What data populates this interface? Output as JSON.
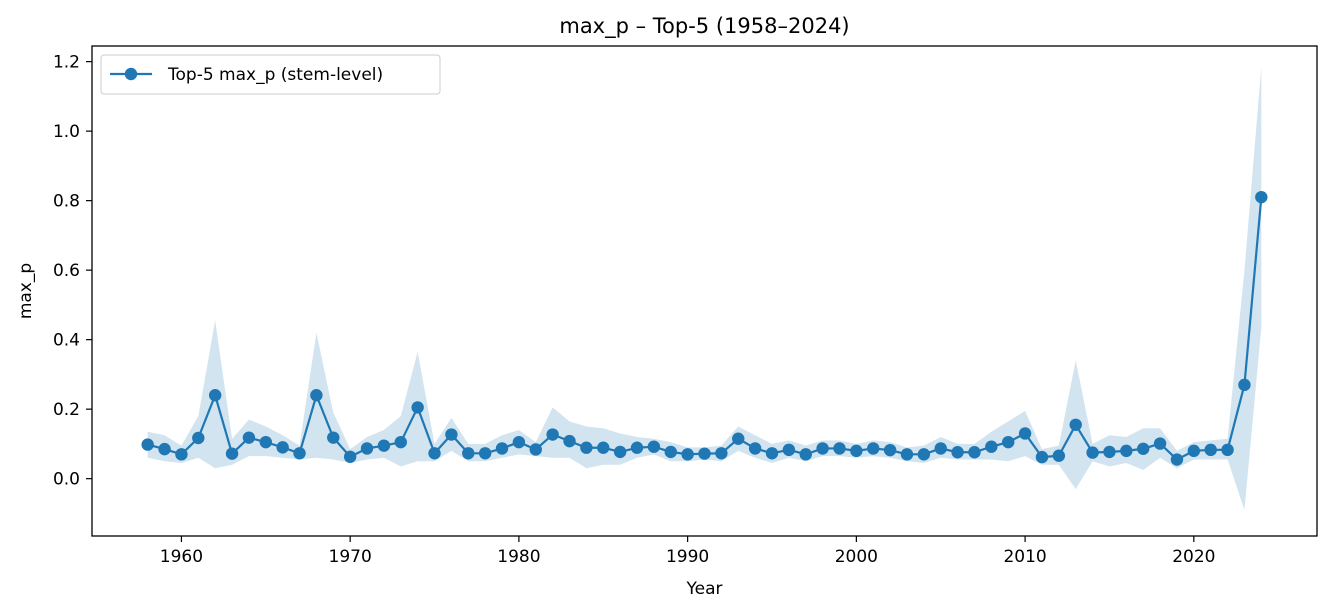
{
  "chart_data": {
    "type": "line",
    "title": "max_p – Top-5 (1958–2024)",
    "xlabel": "Year",
    "ylabel": "max_p",
    "xlim": [
      1954.7,
      2027.3
    ],
    "ylim": [
      -0.165,
      1.245
    ],
    "x_ticks": [
      1960,
      1970,
      1980,
      1990,
      2000,
      2010,
      2020
    ],
    "y_ticks": [
      0.0,
      0.2,
      0.4,
      0.6,
      0.8,
      1.0,
      1.2
    ],
    "y_tick_labels": [
      "0.0",
      "0.2",
      "0.4",
      "0.6",
      "0.8",
      "1.0",
      "1.2"
    ],
    "grid": false,
    "legend_position": "upper left",
    "line_color": "#1f77b4",
    "band_color": "#1f77b4",
    "band_opacity": 0.2,
    "series": [
      {
        "name": "Top-5 max_p (stem-level)",
        "x": [
          1958,
          1959,
          1960,
          1961,
          1962,
          1963,
          1964,
          1965,
          1966,
          1967,
          1968,
          1969,
          1970,
          1971,
          1972,
          1973,
          1974,
          1975,
          1976,
          1977,
          1978,
          1979,
          1980,
          1981,
          1982,
          1983,
          1984,
          1985,
          1986,
          1987,
          1988,
          1989,
          1990,
          1991,
          1992,
          1993,
          1994,
          1995,
          1996,
          1997,
          1998,
          1999,
          2000,
          2001,
          2002,
          2003,
          2004,
          2005,
          2006,
          2007,
          2008,
          2009,
          2010,
          2011,
          2012,
          2013,
          2014,
          2015,
          2016,
          2017,
          2018,
          2019,
          2020,
          2021,
          2022,
          2023,
          2024
        ],
        "values": [
          0.098,
          0.085,
          0.07,
          0.117,
          0.24,
          0.072,
          0.118,
          0.105,
          0.09,
          0.073,
          0.24,
          0.118,
          0.063,
          0.087,
          0.095,
          0.105,
          0.205,
          0.073,
          0.127,
          0.073,
          0.073,
          0.087,
          0.105,
          0.084,
          0.127,
          0.108,
          0.089,
          0.089,
          0.077,
          0.089,
          0.092,
          0.077,
          0.07,
          0.072,
          0.073,
          0.115,
          0.087,
          0.073,
          0.083,
          0.07,
          0.087,
          0.087,
          0.08,
          0.087,
          0.082,
          0.07,
          0.07,
          0.087,
          0.076,
          0.076,
          0.092,
          0.105,
          0.13,
          0.062,
          0.066,
          0.155,
          0.075,
          0.077,
          0.08,
          0.086,
          0.101,
          0.055,
          0.08,
          0.083,
          0.083,
          0.27,
          0.81
        ],
        "upper": [
          0.135,
          0.125,
          0.095,
          0.18,
          0.455,
          0.115,
          0.17,
          0.15,
          0.125,
          0.095,
          0.42,
          0.19,
          0.085,
          0.12,
          0.14,
          0.18,
          0.365,
          0.1,
          0.175,
          0.1,
          0.1,
          0.125,
          0.14,
          0.105,
          0.205,
          0.165,
          0.15,
          0.145,
          0.13,
          0.12,
          0.115,
          0.105,
          0.09,
          0.09,
          0.095,
          0.15,
          0.125,
          0.1,
          0.11,
          0.095,
          0.11,
          0.11,
          0.1,
          0.11,
          0.105,
          0.09,
          0.095,
          0.12,
          0.1,
          0.1,
          0.135,
          0.165,
          0.195,
          0.085,
          0.095,
          0.34,
          0.1,
          0.125,
          0.12,
          0.145,
          0.145,
          0.08,
          0.105,
          0.11,
          0.115,
          0.6,
          1.185
        ],
        "lower": [
          0.06,
          0.05,
          0.045,
          0.06,
          0.03,
          0.04,
          0.065,
          0.065,
          0.06,
          0.055,
          0.06,
          0.055,
          0.045,
          0.055,
          0.06,
          0.035,
          0.05,
          0.05,
          0.08,
          0.05,
          0.05,
          0.06,
          0.07,
          0.065,
          0.06,
          0.06,
          0.03,
          0.04,
          0.04,
          0.06,
          0.07,
          0.05,
          0.05,
          0.055,
          0.05,
          0.08,
          0.06,
          0.045,
          0.06,
          0.05,
          0.065,
          0.065,
          0.06,
          0.065,
          0.06,
          0.05,
          0.045,
          0.06,
          0.055,
          0.055,
          0.055,
          0.05,
          0.065,
          0.04,
          0.04,
          -0.03,
          0.05,
          0.035,
          0.045,
          0.025,
          0.06,
          0.03,
          0.055,
          0.055,
          0.055,
          -0.09,
          0.435
        ]
      }
    ]
  }
}
